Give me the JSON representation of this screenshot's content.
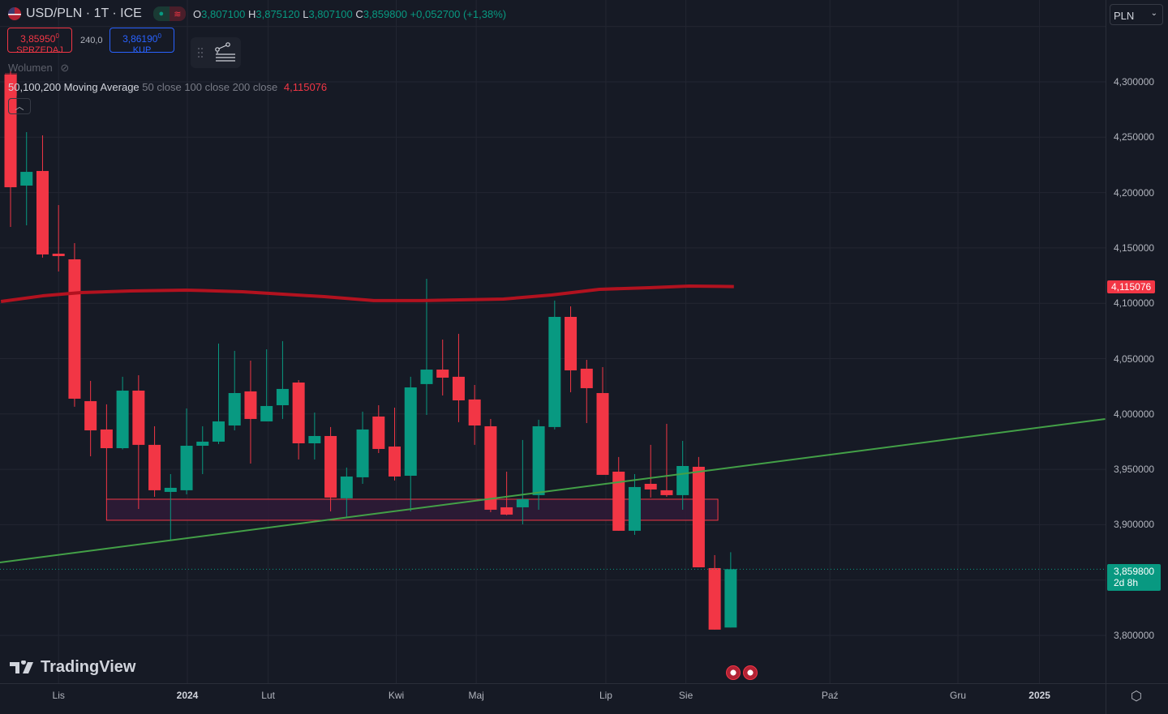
{
  "header": {
    "symbol": "USD/PLN · 1T · ICE",
    "ohlc": {
      "o_label": "O",
      "o": "3,807100",
      "h_label": "H",
      "h": "3,875120",
      "l_label": "L",
      "l": "3,807100",
      "c_label": "C",
      "c": "3,859800",
      "change": "+0,052700 (+1,38%)"
    },
    "sell": {
      "price": "3,85950",
      "sup": "0",
      "label": "SPRZEDAJ"
    },
    "spread": "240,0",
    "buy": {
      "price": "3,86190",
      "sup": "0",
      "label": "KUP"
    },
    "volume_label": "Wolumen",
    "ma": {
      "title": "50,100,200 Moving Average",
      "params": "50 close 100 close 200 close",
      "value": "4,115076"
    },
    "currency": "PLN"
  },
  "price_axis": {
    "labels": [
      "4,300000",
      "4,250000",
      "4,200000",
      "4,150000",
      "4,100000",
      "4,050000",
      "4,000000",
      "3,950000",
      "3,900000",
      "3,800000"
    ],
    "values": [
      4.3,
      4.25,
      4.2,
      4.15,
      4.1,
      4.05,
      4.0,
      3.95,
      3.9,
      3.8
    ],
    "ma_tag": "4,115076",
    "last_price": "3,859800",
    "countdown": "2d 8h"
  },
  "time_axis": [
    {
      "label": "Lis",
      "i": 3,
      "bold": false
    },
    {
      "label": "2024",
      "i": 11.05,
      "bold": true
    },
    {
      "label": "Lut",
      "i": 16.1,
      "bold": false
    },
    {
      "label": "Kwi",
      "i": 24.1,
      "bold": false
    },
    {
      "label": "Maj",
      "i": 29.1,
      "bold": false
    },
    {
      "label": "Lip",
      "i": 37.2,
      "bold": false
    },
    {
      "label": "Sie",
      "i": 42.2,
      "bold": false
    },
    {
      "label": "Paź",
      "i": 51.2,
      "bold": false
    },
    {
      "label": "Gru",
      "i": 59.2,
      "bold": false
    },
    {
      "label": "2025",
      "i": 64.3,
      "bold": true
    }
  ],
  "brand": "TradingView",
  "colors": {
    "up": "#089981",
    "down": "#f23645",
    "ma": "#b2121f",
    "trend": "#43a047",
    "zone": "#2e1b36",
    "bg": "#161a25"
  },
  "chart_data": {
    "type": "candlestick",
    "interval": "1W",
    "ylim": [
      3.78,
      4.33
    ],
    "ohlc": [
      [
        4.3066,
        4.3095,
        4.169,
        4.2048
      ],
      [
        4.2063,
        4.2546,
        4.1704,
        4.2187
      ],
      [
        4.2195,
        4.2517,
        4.1412,
        4.1441
      ],
      [
        4.1448,
        4.1887,
        4.1287,
        4.1426
      ],
      [
        4.1397,
        4.1543,
        4.0065,
        4.0138
      ],
      [
        4.0116,
        4.0299,
        3.9618,
        3.9852
      ],
      [
        3.986,
        4.0087,
        3.9223,
        3.9691
      ],
      [
        3.9691,
        4.0336,
        3.968,
        4.0211
      ],
      [
        4.0211,
        4.035,
        3.9142,
        3.9721
      ],
      [
        3.9721,
        3.9889,
        3.9252,
        3.9311
      ],
      [
        3.9296,
        3.9457,
        3.8857,
        3.9333
      ],
      [
        3.9311,
        4.005,
        3.9274,
        3.9713
      ],
      [
        3.9713,
        3.9889,
        3.9457,
        3.975
      ],
      [
        3.975,
        4.0636,
        3.9728,
        3.9933
      ],
      [
        3.9896,
        4.057,
        3.9852,
        4.0189
      ],
      [
        4.0204,
        4.0482,
        3.9552,
        3.9955
      ],
      [
        3.9933,
        4.0584,
        3.9933,
        4.0072
      ],
      [
        4.0079,
        4.0658,
        3.9955,
        4.0226
      ],
      [
        4.0284,
        4.0306,
        3.9589,
        3.9735
      ],
      [
        3.9735,
        4.0013,
        3.9589,
        3.9801
      ],
      [
        3.9801,
        3.9882,
        3.912,
        3.9245
      ],
      [
        3.9238,
        3.9516,
        3.9069,
        3.9435
      ],
      [
        3.9428,
        4.0021,
        3.9369,
        3.986
      ],
      [
        3.9977,
        4.0079,
        3.9647,
        3.9684
      ],
      [
        3.9706,
        4.0057,
        3.9399,
        3.9435
      ],
      [
        3.9442,
        4.0336,
        3.912,
        4.024
      ],
      [
        4.027,
        4.1221,
        3.9991,
        4.0401
      ],
      [
        4.0401,
        4.0672,
        4.0167,
        4.0328
      ],
      [
        4.0336,
        4.0724,
        3.9926,
        4.0123
      ],
      [
        4.0131,
        4.0262,
        3.9721,
        3.9896
      ],
      [
        3.9889,
        3.9955,
        3.9113,
        3.9135
      ],
      [
        3.9157,
        3.9479,
        3.9085,
        3.9091
      ],
      [
        3.9157,
        3.9765,
        3.9003,
        3.923
      ],
      [
        3.9267,
        3.9948,
        3.9135,
        3.9889
      ],
      [
        3.9882,
        4.1024,
        3.986,
        4.0877
      ],
      [
        4.0877,
        4.0972,
        4.0196,
        4.0394
      ],
      [
        4.0409,
        4.0489,
        3.9918,
        4.0233
      ],
      [
        4.0189,
        4.0423,
        3.945,
        3.945
      ],
      [
        3.9479,
        3.9611,
        3.8945,
        3.8945
      ],
      [
        3.8945,
        3.9457,
        3.8908,
        3.934
      ],
      [
        3.9369,
        3.9721,
        3.9245,
        3.9318
      ],
      [
        3.9311,
        3.9911,
        3.9252,
        3.9267
      ],
      [
        3.9267,
        3.9757,
        3.9135,
        3.953
      ],
      [
        3.9523,
        3.9611,
        3.8615,
        3.8615
      ],
      [
        3.8608,
        3.8725,
        3.8052,
        3.8052
      ],
      [
        3.8071,
        3.87512,
        3.8071,
        3.8598
      ]
    ],
    "ma200": [
      [
        -0.6,
        4.1016
      ],
      [
        2,
        4.1067
      ],
      [
        4.4,
        4.1097
      ],
      [
        7.5,
        4.1111
      ],
      [
        11,
        4.1119
      ],
      [
        14.5,
        4.1104
      ],
      [
        19.6,
        4.106
      ],
      [
        22.7,
        4.1024
      ],
      [
        25.7,
        4.1024
      ],
      [
        30.8,
        4.1038
      ],
      [
        33.8,
        4.1075
      ],
      [
        36.8,
        4.1126
      ],
      [
        39.9,
        4.1141
      ],
      [
        42.4,
        4.1155
      ],
      [
        45.2,
        4.1151
      ]
    ],
    "trendline": [
      [
        -0.66,
        3.8659
      ],
      [
        68.4,
        3.9955
      ]
    ],
    "zone": {
      "from_i": 6.0,
      "to_i": 44.2,
      "top": 3.923,
      "bottom": 3.904
    },
    "last_price": 3.8598
  }
}
